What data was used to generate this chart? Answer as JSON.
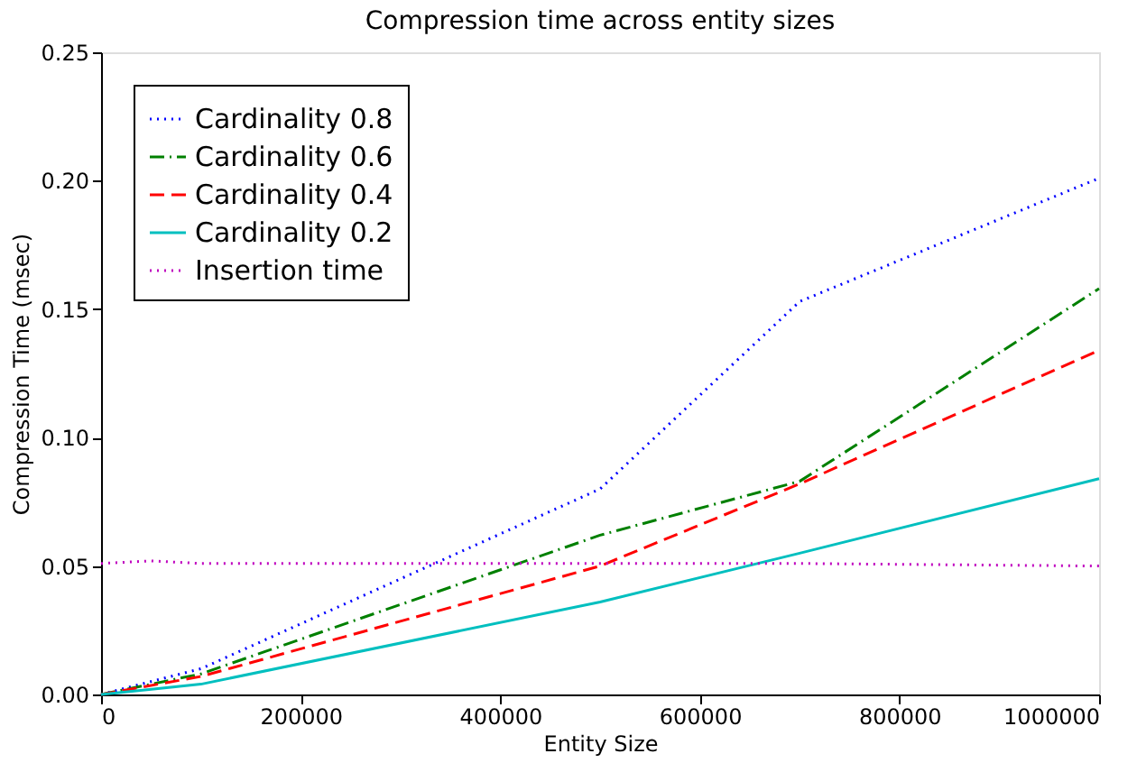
{
  "chart_data": {
    "type": "line",
    "title": "Compression time across entity sizes",
    "xlabel": "Entity Size",
    "ylabel": "Compression Time (msec)",
    "xlim": [
      0,
      1000000
    ],
    "xticks": [
      0,
      200000,
      400000,
      600000,
      800000,
      1000000
    ],
    "ylim": [
      0,
      0.25
    ],
    "yticks": [
      {
        "value": 0,
        "label": "0.00"
      },
      {
        "value": 0.05,
        "label": "0.05"
      },
      {
        "value": 0.1,
        "label": "0.10"
      },
      {
        "value": 0.15,
        "label": "0.15"
      },
      {
        "value": 0.2,
        "label": "0.20"
      },
      {
        "value": 0.25,
        "label": "0.25"
      }
    ],
    "grid": false,
    "legend": "top left",
    "marker": "none",
    "series": [
      {
        "name": "Cardinality 0.8",
        "color": "#0000ff",
        "line_style": "dotted",
        "x": [
          0,
          100000,
          500000,
          700000,
          1000000
        ],
        "values": [
          0,
          0.01,
          0.08,
          0.153,
          0.201
        ]
      },
      {
        "name": "Cardinality 0.6",
        "color": "#008000",
        "line_style": "dashdot",
        "x": [
          0,
          100000,
          500000,
          700000,
          1000000
        ],
        "values": [
          0,
          0.008,
          0.062,
          0.083,
          0.158
        ]
      },
      {
        "name": "Cardinality 0.4",
        "color": "#ff0000",
        "line_style": "dashed",
        "x": [
          0,
          100000,
          500000,
          700000,
          1000000
        ],
        "values": [
          0,
          0.007,
          0.05,
          0.082,
          0.134
        ]
      },
      {
        "name": "Cardinality 0.2",
        "color": "#00bfbf",
        "line_style": "solid",
        "x": [
          0,
          100000,
          500000,
          700000,
          1000000
        ],
        "values": [
          0,
          0.004,
          0.036,
          0.055,
          0.084
        ]
      },
      {
        "name": "Insertion time",
        "color": "#bf00bf",
        "line_style": "dotted",
        "x": [
          0,
          50000,
          100000,
          500000,
          700000,
          1000000
        ],
        "values": [
          0.051,
          0.052,
          0.051,
          0.051,
          0.051,
          0.05
        ]
      }
    ]
  }
}
